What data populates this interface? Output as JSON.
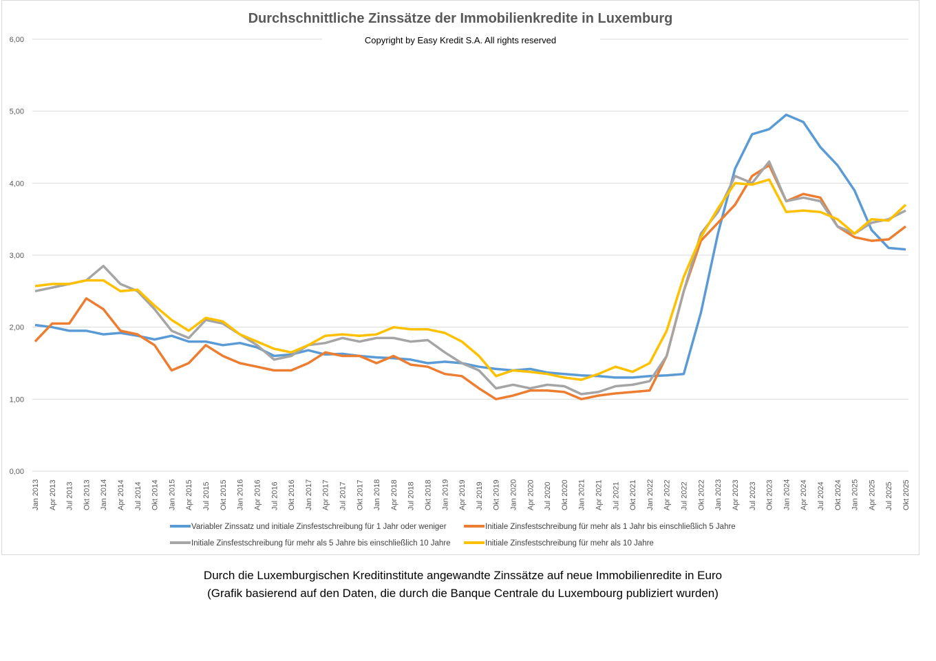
{
  "chart_data": {
    "type": "line",
    "title": "Durchschnittliche Zinssätze der Immobilienkredite in Luxemburg",
    "subtitle": "Copyright by Easy Kredit S.A. All rights reserved",
    "xlabel": "",
    "ylabel": "",
    "ylim": [
      0,
      6
    ],
    "yticks": [
      "0,00",
      "1,00",
      "2,00",
      "3,00",
      "4,00",
      "5,00",
      "6,00"
    ],
    "grid": true,
    "legend_placement": "bottom",
    "categories": [
      "Jan 2013",
      "Apr 2013",
      "Jul 2013",
      "Okt 2013",
      "Jan 2014",
      "Apr 2014",
      "Jul 2014",
      "Okt 2014",
      "Jan 2015",
      "Apr 2015",
      "Jul 2015",
      "Okt 2015",
      "Jan 2016",
      "Apr 2016",
      "Jul 2016",
      "Okt 2016",
      "Jan 2017",
      "Apr 2017",
      "Jul 2017",
      "Okt 2017",
      "Jan 2018",
      "Apr 2018",
      "Jul 2018",
      "Okt 2018",
      "Jan 2019",
      "Apr 2019",
      "Jul 2019",
      "Okt 2019",
      "Jan 2020",
      "Apr 2020",
      "Jul 2020",
      "Okt 2020",
      "Jan 2021",
      "Apr 2021",
      "Jul 2021",
      "Okt 2021",
      "Jan 2022",
      "Apr 2022",
      "Jul 2022",
      "Okt 2022",
      "Jan 2023",
      "Apr 2023",
      "Jul 2023",
      "Okt 2023",
      "Jan 2024",
      "Apr 2024",
      "Jul 2024",
      "Okt 2024",
      "Jan 2025",
      "Apr 2025",
      "Jul 2025",
      "Okt 2025"
    ],
    "series": [
      {
        "name": "Variabler Zinssatz und initiale Zinsfestschreibung für 1 Jahr oder weniger",
        "color": "#5b9bd5",
        "values": [
          2.03,
          2.0,
          1.95,
          1.95,
          1.9,
          1.92,
          1.88,
          1.83,
          1.88,
          1.8,
          1.8,
          1.75,
          1.78,
          1.72,
          1.6,
          1.62,
          1.68,
          1.62,
          1.63,
          1.6,
          1.58,
          1.57,
          1.55,
          1.5,
          1.52,
          1.5,
          1.45,
          1.42,
          1.4,
          1.42,
          1.37,
          1.35,
          1.33,
          1.32,
          1.3,
          1.3,
          1.32,
          1.33,
          1.35,
          2.2,
          3.3,
          4.2,
          4.68,
          4.75,
          4.95,
          4.85,
          4.5,
          4.25,
          3.9,
          3.35,
          3.1,
          3.08
        ]
      },
      {
        "name": "Initiale Zinsfestschreibung für mehr als 1 Jahr bis einschließlich 5 Jahre",
        "color": "#ed7d31",
        "values": [
          1.8,
          2.05,
          2.05,
          2.4,
          2.25,
          1.95,
          1.9,
          1.75,
          1.4,
          1.5,
          1.75,
          1.6,
          1.5,
          1.45,
          1.4,
          1.4,
          1.5,
          1.65,
          1.6,
          1.6,
          1.5,
          1.6,
          1.48,
          1.45,
          1.35,
          1.32,
          1.15,
          1.0,
          1.05,
          1.12,
          1.12,
          1.1,
          1.0,
          1.05,
          1.08,
          1.1,
          1.12,
          1.6,
          2.5,
          3.2,
          3.45,
          3.7,
          4.1,
          4.25,
          3.75,
          3.85,
          3.8,
          3.4,
          3.25,
          3.2,
          3.22,
          3.4
        ]
      },
      {
        "name": "Initiale Zinsfestschreibung für mehr als 5 Jahre bis einschließlich 10 Jahre",
        "color": "#a5a5a5",
        "values": [
          2.5,
          2.55,
          2.6,
          2.65,
          2.85,
          2.6,
          2.5,
          2.25,
          1.95,
          1.85,
          2.1,
          2.05,
          1.9,
          1.75,
          1.55,
          1.6,
          1.75,
          1.78,
          1.85,
          1.8,
          1.85,
          1.85,
          1.8,
          1.82,
          1.65,
          1.5,
          1.4,
          1.15,
          1.2,
          1.15,
          1.2,
          1.18,
          1.07,
          1.1,
          1.18,
          1.2,
          1.25,
          1.6,
          2.5,
          3.3,
          3.6,
          4.1,
          4.0,
          4.3,
          3.75,
          3.8,
          3.75,
          3.4,
          3.3,
          3.45,
          3.5,
          3.62
        ]
      },
      {
        "name": "Initiale Zinsfestschreibung für mehr als 10 Jahre",
        "color": "#ffc000",
        "values": [
          2.57,
          2.6,
          2.6,
          2.65,
          2.65,
          2.5,
          2.52,
          2.3,
          2.1,
          1.95,
          2.13,
          2.08,
          1.9,
          1.8,
          1.7,
          1.65,
          1.75,
          1.88,
          1.9,
          1.88,
          1.9,
          2.0,
          1.97,
          1.97,
          1.92,
          1.8,
          1.6,
          1.32,
          1.4,
          1.38,
          1.35,
          1.3,
          1.27,
          1.35,
          1.45,
          1.38,
          1.5,
          1.95,
          2.7,
          3.25,
          3.65,
          4.0,
          3.98,
          4.05,
          3.6,
          3.62,
          3.6,
          3.5,
          3.3,
          3.5,
          3.48,
          3.7
        ]
      }
    ]
  },
  "caption": {
    "line1": "Durch die Luxemburgischen Kreditinstitute angewandte Zinssätze auf neue Immobilienredite in Euro",
    "line2": "(Grafik basierend auf den Daten, die durch die Banque Centrale du Luxembourg publiziert wurden)"
  }
}
